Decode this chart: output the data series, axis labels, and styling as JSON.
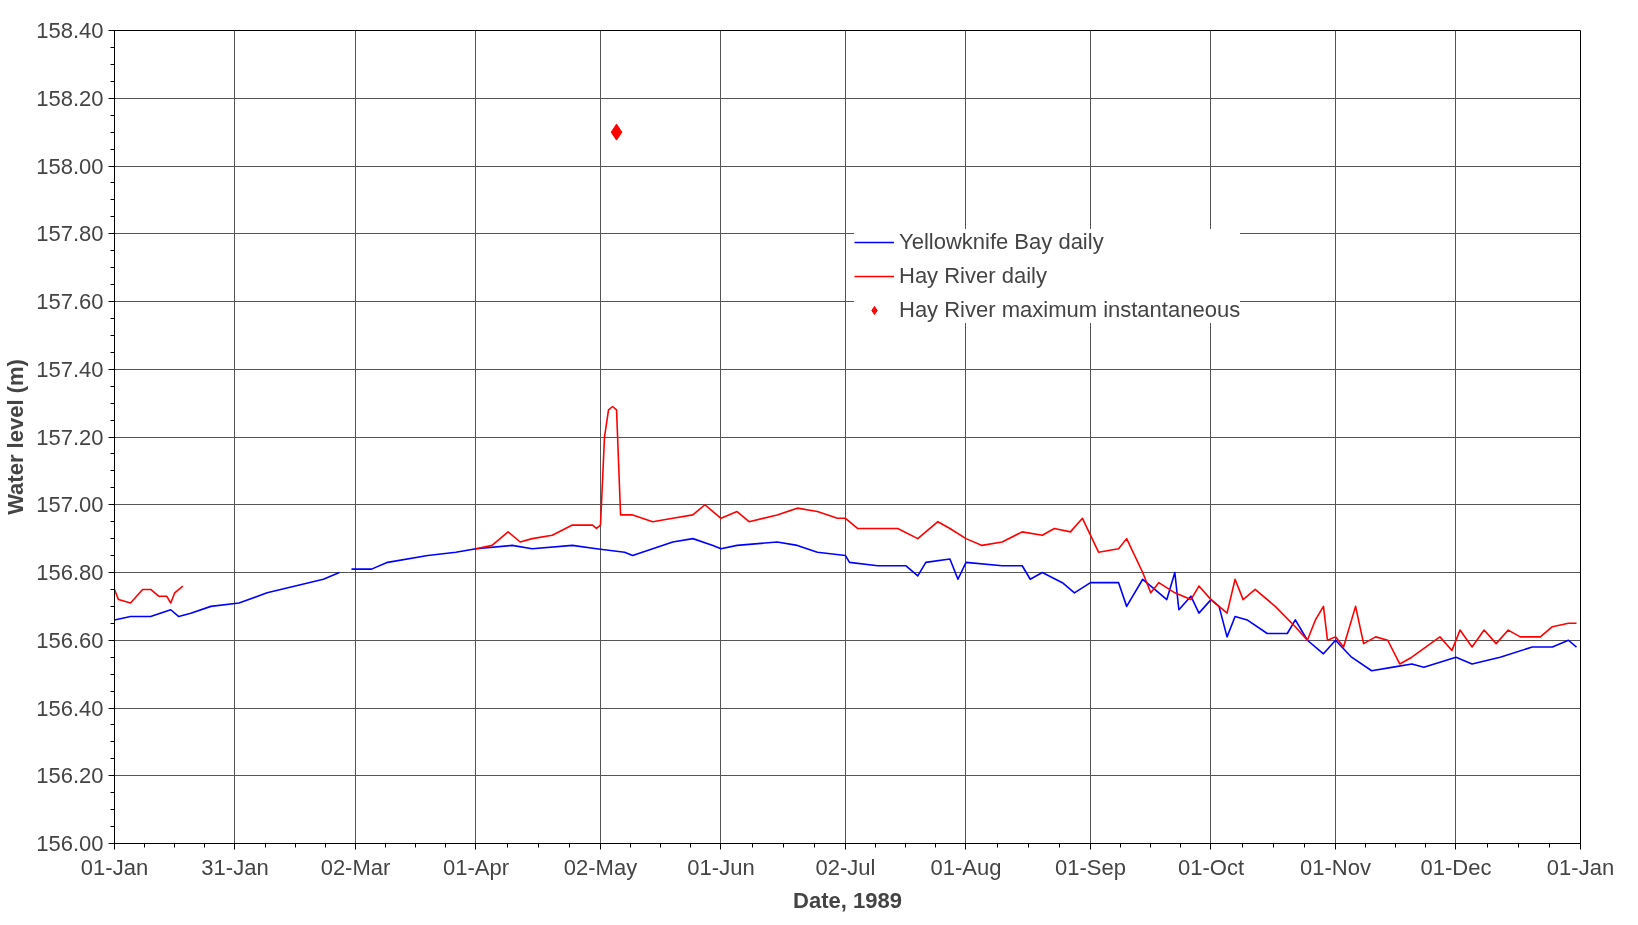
{
  "chart_data": {
    "type": "line",
    "xlabel": "Date, 1989",
    "ylabel": "Water level (m)",
    "xlim": [
      "1989-01-01",
      "1990-01-01"
    ],
    "xticks": [
      {
        "value": "1989-01-01",
        "label": "01-Jan"
      },
      {
        "value": "1989-01-31",
        "label": "31-Jan"
      },
      {
        "value": "1989-03-02",
        "label": "02-Mar"
      },
      {
        "value": "1989-04-01",
        "label": "01-Apr"
      },
      {
        "value": "1989-05-02",
        "label": "02-May"
      },
      {
        "value": "1989-06-01",
        "label": "01-Jun"
      },
      {
        "value": "1989-07-02",
        "label": "02-Jul"
      },
      {
        "value": "1989-08-01",
        "label": "01-Aug"
      },
      {
        "value": "1989-09-01",
        "label": "01-Sep"
      },
      {
        "value": "1989-10-01",
        "label": "01-Oct"
      },
      {
        "value": "1989-11-01",
        "label": "01-Nov"
      },
      {
        "value": "1989-12-01",
        "label": "01-Dec"
      },
      {
        "value": "1990-01-01",
        "label": "01-Jan"
      }
    ],
    "ylim": [
      156.0,
      158.4
    ],
    "yticks": [
      {
        "value": 156.0,
        "label": "156.00"
      },
      {
        "value": 156.2,
        "label": "156.20"
      },
      {
        "value": 156.4,
        "label": "156.40"
      },
      {
        "value": 156.6,
        "label": "156.60"
      },
      {
        "value": 156.8,
        "label": "156.80"
      },
      {
        "value": 157.0,
        "label": "157.00"
      },
      {
        "value": 157.2,
        "label": "157.20"
      },
      {
        "value": 157.4,
        "label": "157.40"
      },
      {
        "value": 157.6,
        "label": "157.60"
      },
      {
        "value": 157.8,
        "label": "157.80"
      },
      {
        "value": 158.0,
        "label": "158.00"
      },
      {
        "value": 158.2,
        "label": "158.20"
      },
      {
        "value": 158.4,
        "label": "158.40"
      }
    ],
    "grid": true,
    "legend": "top right",
    "marker": "none",
    "line_style": "solid",
    "series": [
      {
        "name": "Yellowknife Bay daily",
        "color": "#0000ff",
        "x": [
          "1989-01-01",
          "1989-01-05",
          "1989-01-10",
          "1989-01-15",
          "1989-01-17",
          "1989-01-20",
          "1989-01-25",
          "1989-02-01",
          "1989-02-08",
          "1989-02-15",
          "1989-02-22",
          "1989-02-26",
          "1989-02-28",
          "1989-03-01",
          "1989-03-06",
          "1989-03-10",
          "1989-03-20",
          "1989-03-27",
          "1989-04-01",
          "1989-04-10",
          "1989-04-15",
          "1989-04-25",
          "1989-05-01",
          "1989-05-08",
          "1989-05-10",
          "1989-05-15",
          "1989-05-20",
          "1989-05-25",
          "1989-05-30",
          "1989-06-01",
          "1989-06-05",
          "1989-06-15",
          "1989-06-20",
          "1989-06-25",
          "1989-07-02",
          "1989-07-03",
          "1989-07-10",
          "1989-07-17",
          "1989-07-20",
          "1989-07-22",
          "1989-07-28",
          "1989-07-30",
          "1989-08-01",
          "1989-08-10",
          "1989-08-15",
          "1989-08-17",
          "1989-08-20",
          "1989-08-25",
          "1989-08-28",
          "1989-09-01",
          "1989-09-08",
          "1989-09-10",
          "1989-09-14",
          "1989-09-17",
          "1989-09-20",
          "1989-09-22",
          "1989-09-23",
          "1989-09-26",
          "1989-09-28",
          "1989-10-01",
          "1989-10-03",
          "1989-10-05",
          "1989-10-07",
          "1989-10-10",
          "1989-10-15",
          "1989-10-20",
          "1989-10-22",
          "1989-10-25",
          "1989-10-29",
          "1989-11-01",
          "1989-11-05",
          "1989-11-10",
          "1989-11-15",
          "1989-11-20",
          "1989-11-23",
          "1989-12-01",
          "1989-12-05",
          "1989-12-12",
          "1989-12-20",
          "1989-12-25",
          "1989-12-29",
          "1989-12-31"
        ],
        "values": [
          156.66,
          156.67,
          156.67,
          156.69,
          156.67,
          156.68,
          156.7,
          156.71,
          156.74,
          156.76,
          156.78,
          156.8,
          null,
          156.81,
          156.81,
          156.83,
          156.85,
          156.86,
          156.87,
          156.88,
          156.87,
          156.88,
          156.87,
          156.86,
          156.85,
          156.87,
          156.89,
          156.9,
          156.88,
          156.87,
          156.88,
          156.89,
          156.88,
          156.86,
          156.85,
          156.83,
          156.82,
          156.82,
          156.79,
          156.83,
          156.84,
          156.78,
          156.83,
          156.82,
          156.82,
          156.78,
          156.8,
          156.77,
          156.74,
          156.77,
          156.77,
          156.7,
          156.78,
          156.75,
          156.72,
          156.8,
          156.69,
          156.73,
          156.68,
          156.72,
          156.7,
          156.61,
          156.67,
          156.66,
          156.62,
          156.62,
          156.66,
          156.6,
          156.56,
          156.6,
          156.55,
          156.51,
          156.52,
          156.53,
          156.52,
          156.55,
          156.53,
          156.55,
          156.58,
          156.58,
          156.6,
          156.58
        ]
      },
      {
        "name": "Hay River daily",
        "color": "#ff0000",
        "x": [
          "1989-01-01",
          "1989-01-02",
          "1989-01-05",
          "1989-01-08",
          "1989-01-10",
          "1989-01-12",
          "1989-01-14",
          "1989-01-15",
          "1989-01-16",
          "1989-01-18",
          "1989-02-15",
          "1989-04-01",
          "1989-04-05",
          "1989-04-09",
          "1989-04-12",
          "1989-04-15",
          "1989-04-20",
          "1989-04-25",
          "1989-04-30",
          "1989-05-01",
          "1989-05-02",
          "1989-05-03",
          "1989-05-04",
          "1989-05-05",
          "1989-05-06",
          "1989-05-07",
          "1989-05-10",
          "1989-05-15",
          "1989-05-20",
          "1989-05-25",
          "1989-05-28",
          "1989-05-30",
          "1989-06-01",
          "1989-06-05",
          "1989-06-08",
          "1989-06-15",
          "1989-06-20",
          "1989-06-25",
          "1989-06-30",
          "1989-07-02",
          "1989-07-05",
          "1989-07-15",
          "1989-07-20",
          "1989-07-25",
          "1989-07-28",
          "1989-08-01",
          "1989-08-05",
          "1989-08-10",
          "1989-08-15",
          "1989-08-20",
          "1989-08-23",
          "1989-08-27",
          "1989-08-30",
          "1989-09-03",
          "1989-09-08",
          "1989-09-10",
          "1989-09-14",
          "1989-09-16",
          "1989-09-18",
          "1989-09-22",
          "1989-09-26",
          "1989-09-28",
          "1989-10-01",
          "1989-10-05",
          "1989-10-07",
          "1989-10-09",
          "1989-10-12",
          "1989-10-17",
          "1989-10-22",
          "1989-10-25",
          "1989-10-27",
          "1989-10-29",
          "1989-10-30",
          "1989-11-01",
          "1989-11-03",
          "1989-11-06",
          "1989-11-08",
          "1989-11-11",
          "1989-11-14",
          "1989-11-17",
          "1989-11-20",
          "1989-11-27",
          "1989-11-30",
          "1989-12-02",
          "1989-12-05",
          "1989-12-08",
          "1989-12-11",
          "1989-12-14",
          "1989-12-17",
          "1989-12-22",
          "1989-12-25",
          "1989-12-29",
          "1989-12-31"
        ],
        "values": [
          156.75,
          156.72,
          156.71,
          156.75,
          156.75,
          156.73,
          156.73,
          156.71,
          156.74,
          156.76,
          null,
          156.87,
          156.88,
          156.92,
          156.89,
          156.9,
          156.91,
          156.94,
          156.94,
          156.93,
          156.94,
          157.2,
          157.28,
          157.29,
          157.28,
          156.97,
          156.97,
          156.95,
          156.96,
          156.97,
          157.0,
          156.98,
          156.96,
          156.98,
          156.95,
          156.97,
          156.99,
          156.98,
          156.96,
          156.96,
          156.93,
          156.93,
          156.9,
          156.95,
          156.93,
          156.9,
          156.88,
          156.89,
          156.92,
          156.91,
          156.93,
          156.92,
          156.96,
          156.86,
          156.87,
          156.9,
          156.8,
          156.74,
          156.77,
          156.74,
          156.72,
          156.76,
          156.72,
          156.68,
          156.78,
          156.72,
          156.75,
          156.7,
          156.64,
          156.6,
          156.66,
          156.7,
          156.6,
          156.61,
          156.58,
          156.7,
          156.59,
          156.61,
          156.6,
          156.53,
          156.55,
          156.61,
          156.57,
          156.63,
          156.58,
          156.63,
          156.59,
          156.63,
          156.61,
          156.61,
          156.64,
          156.65,
          156.65
        ]
      },
      {
        "name": "Hay River maximum instantaneous",
        "color": "#ff0000",
        "type": "scatter",
        "marker": "diamond",
        "x": [
          "1989-05-06"
        ],
        "values": [
          158.1
        ]
      }
    ]
  }
}
